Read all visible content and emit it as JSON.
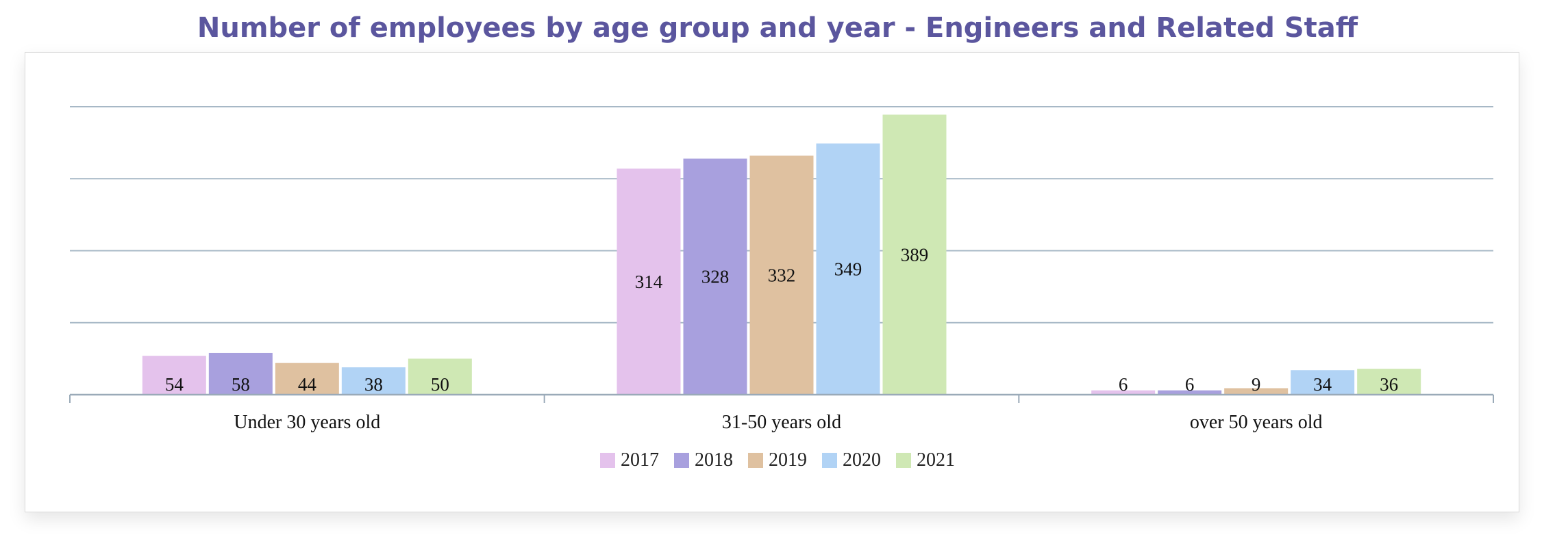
{
  "chart_data": {
    "type": "bar",
    "title": "Number of employees by age group and year - Engineers and Related Staff",
    "xlabel": "",
    "ylabel": "",
    "categories": [
      "Under 30 years old",
      "31-50 years old",
      "over 50 years old"
    ],
    "series": [
      {
        "name": "2017",
        "color": "#e4c2ec",
        "values": [
          54,
          314,
          6
        ]
      },
      {
        "name": "2018",
        "color": "#a8a0de",
        "values": [
          58,
          328,
          6
        ]
      },
      {
        "name": "2019",
        "color": "#dfc1a0",
        "values": [
          44,
          332,
          9
        ]
      },
      {
        "name": "2020",
        "color": "#b1d3f5",
        "values": [
          38,
          349,
          34
        ]
      },
      {
        "name": "2021",
        "color": "#cfe8b4",
        "values": [
          50,
          389,
          36
        ]
      }
    ],
    "ylim": [
      0,
      400
    ],
    "grid": true,
    "y_tick_labels_shown": false,
    "legend_position": "bottom",
    "data_labels": true
  }
}
